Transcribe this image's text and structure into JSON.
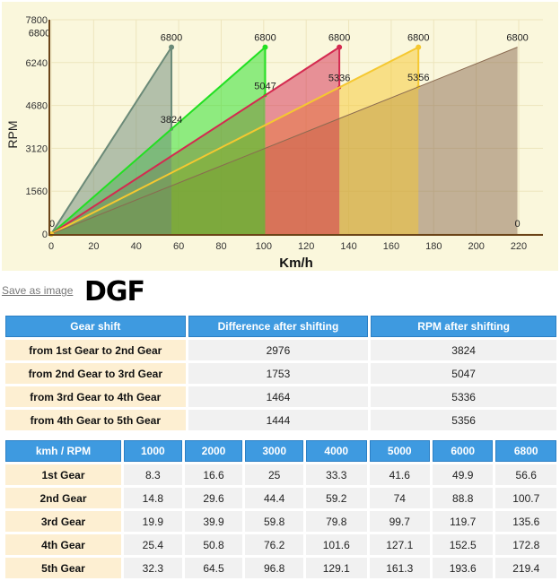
{
  "chart_data": {
    "type": "area",
    "xlabel": "Km/h",
    "ylabel": "RPM",
    "xlim": [
      0,
      230
    ],
    "ylim": [
      0,
      7800
    ],
    "xticks": [
      0,
      20,
      40,
      60,
      80,
      100,
      120,
      140,
      160,
      180,
      200,
      220
    ],
    "yticks": [
      0,
      1560,
      3120,
      4680,
      6240,
      7800
    ],
    "grid": true,
    "series": [
      {
        "vmax": 56.6,
        "max_rpm": 6800,
        "shift_rpm": 3824,
        "color": "#6b8a78"
      },
      {
        "vmax": 100.7,
        "max_rpm": 6800,
        "shift_rpm": 5047,
        "color": "#22e022"
      },
      {
        "vmax": 135.6,
        "max_rpm": 6800,
        "shift_rpm": 5336,
        "color": "#d42a50"
      },
      {
        "vmax": 172.8,
        "max_rpm": 6800,
        "shift_rpm": 5356,
        "color": "#f5c830"
      },
      {
        "vmax": 219.4,
        "max_rpm": 6800,
        "shift_rpm": 0,
        "color": "#8a6a50"
      }
    ],
    "annotations": [
      "0",
      "6800",
      "6800",
      "3824",
      "6800",
      "5047",
      "6800",
      "5336",
      "6800",
      "5356",
      "6800",
      "0"
    ]
  },
  "save_label": "Save as image",
  "title": "DGF",
  "shift_table": {
    "headers": [
      "Gear shift",
      "Difference after shifting",
      "RPM after shifting"
    ],
    "rows": [
      [
        "from 1st Gear to 2nd Gear",
        "2976",
        "3824"
      ],
      [
        "from 2nd Gear to 3rd Gear",
        "1753",
        "5047"
      ],
      [
        "from 3rd Gear to 4th Gear",
        "1464",
        "5336"
      ],
      [
        "from 4th Gear to 5th Gear",
        "1444",
        "5356"
      ]
    ]
  },
  "speed_table": {
    "headers": [
      "kmh / RPM",
      "1000",
      "2000",
      "3000",
      "4000",
      "5000",
      "6000",
      "6800"
    ],
    "rows": [
      [
        "1st Gear",
        "8.3",
        "16.6",
        "25",
        "33.3",
        "41.6",
        "49.9",
        "56.6"
      ],
      [
        "2nd Gear",
        "14.8",
        "29.6",
        "44.4",
        "59.2",
        "74",
        "88.8",
        "100.7"
      ],
      [
        "3rd Gear",
        "19.9",
        "39.9",
        "59.8",
        "79.8",
        "99.7",
        "119.7",
        "135.6"
      ],
      [
        "4th Gear",
        "25.4",
        "50.8",
        "76.2",
        "101.6",
        "127.1",
        "152.5",
        "172.8"
      ],
      [
        "5th Gear",
        "32.3",
        "64.5",
        "96.8",
        "129.1",
        "161.3",
        "193.6",
        "219.4"
      ]
    ]
  }
}
